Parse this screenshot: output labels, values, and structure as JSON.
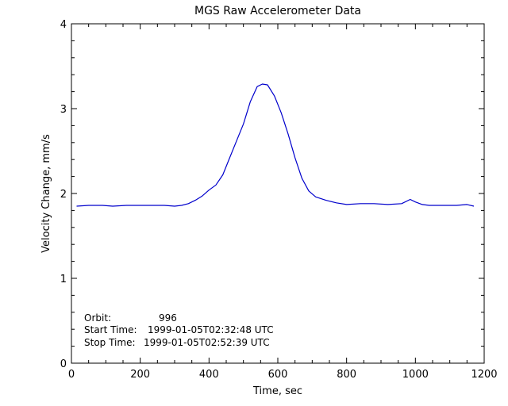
{
  "chart_data": {
    "type": "line",
    "title": "MGS Raw Accelerometer Data",
    "xlabel": "Time, sec",
    "ylabel": "Velocity Change, mm/s",
    "xlim": [
      0,
      1200
    ],
    "ylim": [
      0,
      4
    ],
    "xticks": [
      "0",
      "200",
      "400",
      "600",
      "800",
      "1000",
      "1200"
    ],
    "yticks": [
      "0",
      "1",
      "2",
      "3",
      "4"
    ],
    "grid": false,
    "series_color": "#0000cc",
    "series": [
      {
        "x": [
          15,
          50,
          90,
          120,
          160,
          200,
          240,
          270,
          300,
          320,
          340,
          360,
          380,
          400,
          420,
          440,
          460,
          480,
          500,
          520,
          540,
          555,
          570,
          590,
          610,
          630,
          650,
          670,
          690,
          710,
          740,
          770,
          800,
          840,
          880,
          920,
          960,
          985,
          1000,
          1020,
          1040,
          1080,
          1120,
          1150,
          1170
        ],
        "y": [
          1.85,
          1.86,
          1.86,
          1.85,
          1.86,
          1.86,
          1.86,
          1.86,
          1.85,
          1.86,
          1.88,
          1.92,
          1.97,
          2.04,
          2.1,
          2.22,
          2.42,
          2.62,
          2.82,
          3.08,
          3.26,
          3.29,
          3.28,
          3.15,
          2.95,
          2.7,
          2.42,
          2.18,
          2.03,
          1.96,
          1.92,
          1.89,
          1.87,
          1.88,
          1.88,
          1.87,
          1.88,
          1.93,
          1.9,
          1.87,
          1.86,
          1.86,
          1.86,
          1.87,
          1.85
        ]
      }
    ],
    "annotations": [
      {
        "label": "Orbit:",
        "value": "996"
      },
      {
        "label": "Start Time:",
        "value": "1999-01-05T02:32:48 UTC"
      },
      {
        "label": "Stop Time:",
        "value": "1999-01-05T02:52:39 UTC"
      }
    ]
  }
}
